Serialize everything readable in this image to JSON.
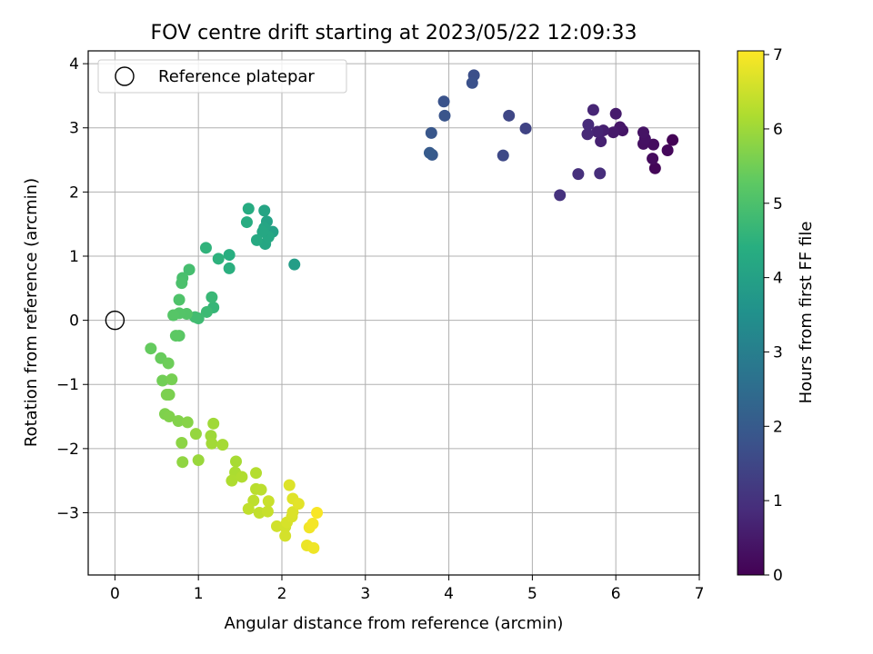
{
  "chart_data": {
    "type": "scatter",
    "title": "FOV centre drift starting at 2023/05/22 12:09:33",
    "xlabel": "Angular distance from reference (arcmin)",
    "ylabel": "Rotation from reference (arcmin)",
    "colorbar_label": "Hours from first FF file",
    "colormap": "viridis",
    "xlim": [
      -0.32,
      7.0
    ],
    "ylim": [
      -3.97,
      4.2
    ],
    "clim": [
      0,
      7.05
    ],
    "xticks": [
      0,
      1,
      2,
      3,
      4,
      5,
      6,
      7
    ],
    "yticks": [
      -3,
      -2,
      -1,
      0,
      1,
      2,
      3,
      4
    ],
    "cticks": [
      0,
      1,
      2,
      3,
      4,
      5,
      6,
      7
    ],
    "xtick_labels": [
      "0",
      "1",
      "2",
      "3",
      "4",
      "5",
      "6",
      "7"
    ],
    "ytick_labels": [
      "−3",
      "−2",
      "−1",
      "0",
      "1",
      "2",
      "3",
      "4"
    ],
    "ctick_labels": [
      "0",
      "1",
      "2",
      "3",
      "4",
      "5",
      "6",
      "7"
    ],
    "grid": true,
    "legend": {
      "placement": "top-left",
      "label": "Reference platepar"
    },
    "reference_point": {
      "x": 0,
      "y": 0
    },
    "points": [
      {
        "x": 6.68,
        "y": 2.81,
        "t": 0.05
      },
      {
        "x": 6.47,
        "y": 2.37,
        "t": 0.1
      },
      {
        "x": 6.62,
        "y": 2.65,
        "t": 0.15
      },
      {
        "x": 6.44,
        "y": 2.52,
        "t": 0.2
      },
      {
        "x": 6.45,
        "y": 2.74,
        "t": 0.25
      },
      {
        "x": 6.33,
        "y": 2.75,
        "t": 0.3
      },
      {
        "x": 6.35,
        "y": 2.83,
        "t": 0.33
      },
      {
        "x": 6.33,
        "y": 2.93,
        "t": 0.36
      },
      {
        "x": 6.08,
        "y": 2.96,
        "t": 0.4
      },
      {
        "x": 6.05,
        "y": 3.01,
        "t": 0.45
      },
      {
        "x": 5.97,
        "y": 2.93,
        "t": 0.5
      },
      {
        "x": 6.0,
        "y": 3.22,
        "t": 0.55
      },
      {
        "x": 5.85,
        "y": 2.96,
        "t": 0.6
      },
      {
        "x": 5.82,
        "y": 2.79,
        "t": 0.65
      },
      {
        "x": 5.78,
        "y": 2.94,
        "t": 0.7
      },
      {
        "x": 5.73,
        "y": 3.28,
        "t": 0.75
      },
      {
        "x": 5.66,
        "y": 2.9,
        "t": 0.8
      },
      {
        "x": 5.67,
        "y": 3.05,
        "t": 0.85
      },
      {
        "x": 5.81,
        "y": 2.29,
        "t": 0.9
      },
      {
        "x": 5.55,
        "y": 2.28,
        "t": 0.95
      },
      {
        "x": 5.33,
        "y": 1.95,
        "t": 1.0
      },
      {
        "x": 4.92,
        "y": 2.99,
        "t": 1.4
      },
      {
        "x": 4.72,
        "y": 3.19,
        "t": 1.5
      },
      {
        "x": 4.65,
        "y": 2.57,
        "t": 1.55
      },
      {
        "x": 4.3,
        "y": 3.82,
        "t": 1.7
      },
      {
        "x": 4.28,
        "y": 3.7,
        "t": 1.75
      },
      {
        "x": 3.94,
        "y": 3.41,
        "t": 1.8
      },
      {
        "x": 3.95,
        "y": 3.19,
        "t": 1.85
      },
      {
        "x": 3.79,
        "y": 2.92,
        "t": 1.9
      },
      {
        "x": 3.8,
        "y": 2.58,
        "t": 1.95
      },
      {
        "x": 3.77,
        "y": 2.61,
        "t": 2.0
      },
      {
        "x": 2.15,
        "y": 0.87,
        "t": 3.9
      },
      {
        "x": 1.89,
        "y": 1.38,
        "t": 4.0
      },
      {
        "x": 1.82,
        "y": 1.54,
        "t": 4.05
      },
      {
        "x": 1.79,
        "y": 1.71,
        "t": 4.1
      },
      {
        "x": 1.79,
        "y": 1.44,
        "t": 4.12
      },
      {
        "x": 1.8,
        "y": 1.19,
        "t": 4.15
      },
      {
        "x": 1.84,
        "y": 1.3,
        "t": 4.18
      },
      {
        "x": 1.77,
        "y": 1.38,
        "t": 4.2
      },
      {
        "x": 1.7,
        "y": 1.25,
        "t": 4.25
      },
      {
        "x": 1.6,
        "y": 1.74,
        "t": 4.3
      },
      {
        "x": 1.58,
        "y": 1.53,
        "t": 4.35
      },
      {
        "x": 1.37,
        "y": 1.02,
        "t": 4.4
      },
      {
        "x": 1.37,
        "y": 0.81,
        "t": 4.45
      },
      {
        "x": 1.24,
        "y": 0.96,
        "t": 4.5
      },
      {
        "x": 1.09,
        "y": 1.13,
        "t": 4.55
      },
      {
        "x": 1.18,
        "y": 0.2,
        "t": 4.65
      },
      {
        "x": 1.16,
        "y": 0.36,
        "t": 4.7
      },
      {
        "x": 1.1,
        "y": 0.13,
        "t": 4.75
      },
      {
        "x": 1.0,
        "y": 0.03,
        "t": 4.8
      },
      {
        "x": 0.96,
        "y": 0.05,
        "t": 4.85
      },
      {
        "x": 0.89,
        "y": 0.79,
        "t": 4.9
      },
      {
        "x": 0.81,
        "y": 0.66,
        "t": 4.95
      },
      {
        "x": 0.8,
        "y": 0.58,
        "t": 5.0
      },
      {
        "x": 0.77,
        "y": 0.32,
        "t": 5.05
      },
      {
        "x": 0.86,
        "y": 0.1,
        "t": 5.1
      },
      {
        "x": 0.77,
        "y": 0.11,
        "t": 5.12
      },
      {
        "x": 0.7,
        "y": 0.08,
        "t": 5.15
      },
      {
        "x": 0.77,
        "y": -0.24,
        "t": 5.2
      },
      {
        "x": 0.73,
        "y": -0.24,
        "t": 5.25
      },
      {
        "x": 0.43,
        "y": -0.44,
        "t": 5.35
      },
      {
        "x": 0.55,
        "y": -0.59,
        "t": 5.4
      },
      {
        "x": 0.64,
        "y": -0.67,
        "t": 5.45
      },
      {
        "x": 0.57,
        "y": -0.94,
        "t": 5.5
      },
      {
        "x": 0.68,
        "y": -0.92,
        "t": 5.55
      },
      {
        "x": 0.65,
        "y": -1.16,
        "t": 5.6
      },
      {
        "x": 0.62,
        "y": -1.16,
        "t": 5.62
      },
      {
        "x": 0.6,
        "y": -1.46,
        "t": 5.65
      },
      {
        "x": 0.65,
        "y": -1.5,
        "t": 5.68
      },
      {
        "x": 0.76,
        "y": -1.57,
        "t": 5.7
      },
      {
        "x": 0.87,
        "y": -1.59,
        "t": 5.75
      },
      {
        "x": 0.8,
        "y": -1.91,
        "t": 5.8
      },
      {
        "x": 0.81,
        "y": -2.21,
        "t": 5.85
      },
      {
        "x": 0.97,
        "y": -1.77,
        "t": 5.9
      },
      {
        "x": 1.0,
        "y": -2.18,
        "t": 5.95
      },
      {
        "x": 1.15,
        "y": -1.8,
        "t": 6.0
      },
      {
        "x": 1.18,
        "y": -1.61,
        "t": 6.02
      },
      {
        "x": 1.16,
        "y": -1.92,
        "t": 6.05
      },
      {
        "x": 1.29,
        "y": -1.94,
        "t": 6.08
      },
      {
        "x": 1.45,
        "y": -2.2,
        "t": 6.1
      },
      {
        "x": 1.44,
        "y": -2.37,
        "t": 6.15
      },
      {
        "x": 1.4,
        "y": -2.5,
        "t": 6.18
      },
      {
        "x": 1.52,
        "y": -2.44,
        "t": 6.2
      },
      {
        "x": 1.69,
        "y": -2.38,
        "t": 6.25
      },
      {
        "x": 1.69,
        "y": -2.63,
        "t": 6.3
      },
      {
        "x": 1.75,
        "y": -2.64,
        "t": 6.32
      },
      {
        "x": 1.66,
        "y": -2.81,
        "t": 6.35
      },
      {
        "x": 1.6,
        "y": -2.94,
        "t": 6.38
      },
      {
        "x": 1.73,
        "y": -3.0,
        "t": 6.4
      },
      {
        "x": 1.83,
        "y": -2.98,
        "t": 6.45
      },
      {
        "x": 1.84,
        "y": -2.82,
        "t": 6.48
      },
      {
        "x": 1.94,
        "y": -3.21,
        "t": 6.55
      },
      {
        "x": 2.04,
        "y": -3.22,
        "t": 6.58
      },
      {
        "x": 2.04,
        "y": -3.36,
        "t": 6.6
      },
      {
        "x": 2.06,
        "y": -3.15,
        "t": 6.62
      },
      {
        "x": 2.12,
        "y": -3.06,
        "t": 6.65
      },
      {
        "x": 2.13,
        "y": -2.99,
        "t": 6.68
      },
      {
        "x": 2.09,
        "y": -2.57,
        "t": 6.7
      },
      {
        "x": 2.13,
        "y": -2.78,
        "t": 6.72
      },
      {
        "x": 2.2,
        "y": -2.86,
        "t": 6.75
      },
      {
        "x": 2.3,
        "y": -3.51,
        "t": 6.85
      },
      {
        "x": 2.38,
        "y": -3.55,
        "t": 6.9
      },
      {
        "x": 2.33,
        "y": -3.23,
        "t": 6.92
      },
      {
        "x": 2.37,
        "y": -3.17,
        "t": 6.95
      },
      {
        "x": 2.42,
        "y": -3.0,
        "t": 7.0
      }
    ]
  }
}
